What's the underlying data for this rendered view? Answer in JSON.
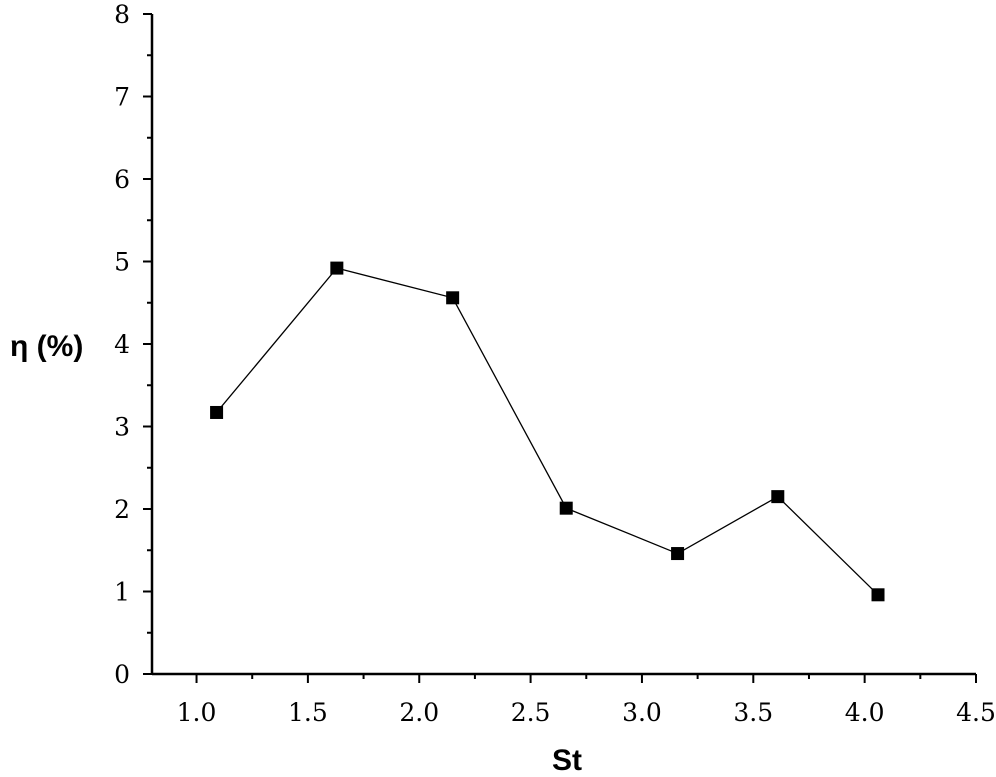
{
  "chart_data": {
    "type": "line",
    "xlabel": "St",
    "ylabel": "η (%)",
    "xlim": [
      0.8,
      4.5
    ],
    "ylim": [
      0,
      8
    ],
    "xticks": [
      "1.0",
      "1.5",
      "2.0",
      "2.5",
      "3.0",
      "3.5",
      "4.0",
      "4.5"
    ],
    "xtick_values": [
      1.0,
      1.5,
      2.0,
      2.5,
      3.0,
      3.5,
      4.0,
      4.5
    ],
    "yticks": [
      "0",
      "1",
      "2",
      "3",
      "4",
      "5",
      "6",
      "7",
      "8"
    ],
    "ytick_values": [
      0,
      1,
      2,
      3,
      4,
      5,
      6,
      7,
      8
    ],
    "grid": false,
    "marker": "square",
    "series": [
      {
        "x": [
          1.09,
          1.63,
          2.15,
          2.66,
          3.16,
          3.61,
          4.06
        ],
        "y": [
          3.17,
          4.92,
          4.56,
          2.01,
          1.46,
          2.15,
          0.96
        ]
      }
    ]
  }
}
